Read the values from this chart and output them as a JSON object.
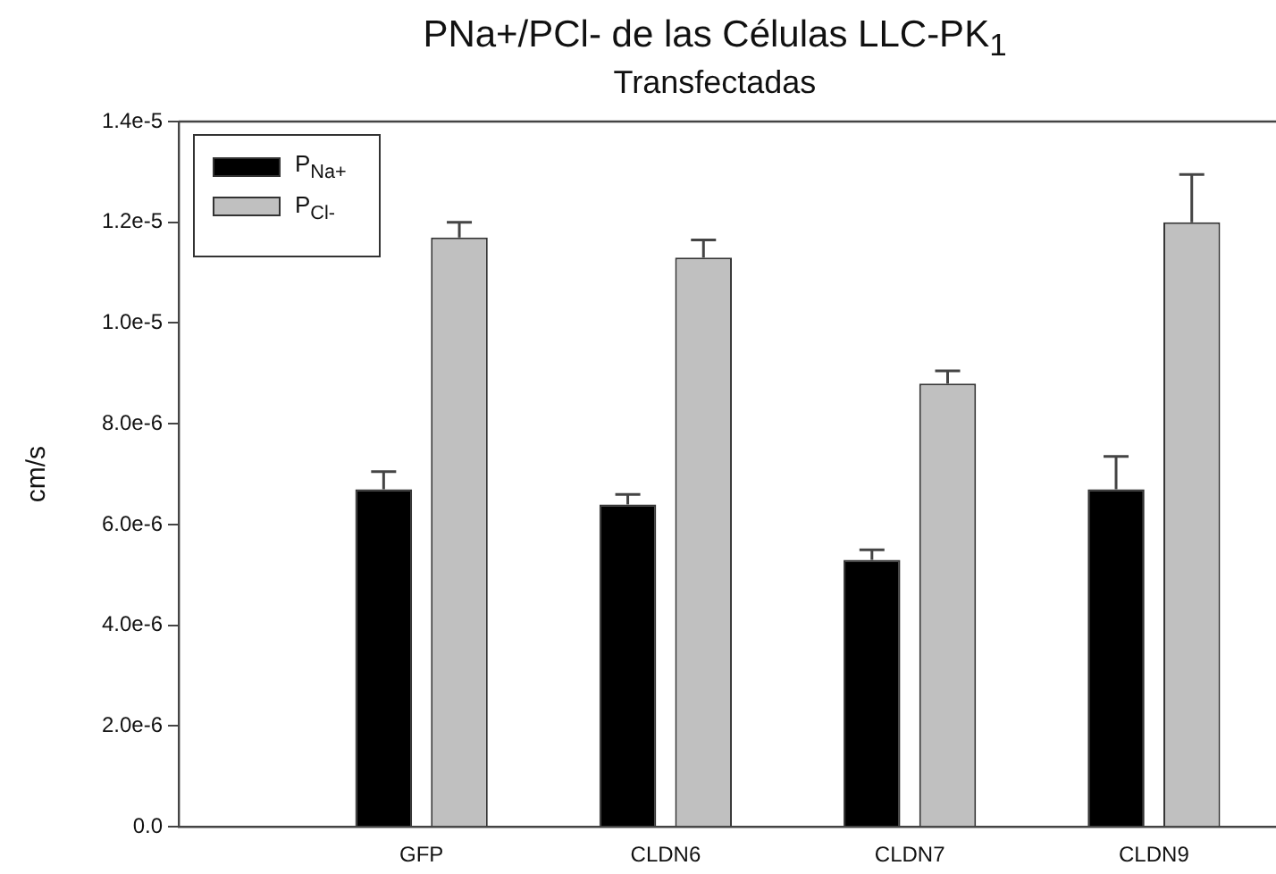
{
  "chart_data": {
    "type": "bar",
    "title": "PNa+/PCl- de las Células LLC-PK$_{1}$",
    "subtitle": "Transfectadas",
    "ylabel": "cm/s",
    "categories": [
      "GFP",
      "CLDN6",
      "CLDN7",
      "CLDN9"
    ],
    "series": [
      {
        "name": "P$_{Na+}$",
        "color": "#000000",
        "values": [
          6.7e-06,
          6.4e-06,
          5.3e-06,
          6.7e-06
        ],
        "errors": [
          3.5e-07,
          2e-07,
          2e-07,
          6.5e-07
        ]
      },
      {
        "name": "P$_{Cl-}$",
        "color": "#c0c0c0",
        "values": [
          1.17e-05,
          1.13e-05,
          8.8e-06,
          1.2e-05
        ],
        "errors": [
          3e-07,
          3.5e-07,
          2.5e-07,
          9.5e-07
        ]
      }
    ],
    "ylim": [
      0,
      1.4e-05
    ],
    "yticks": [
      {
        "value": 0,
        "label": "0.0"
      },
      {
        "value": 2e-06,
        "label": "2.0e-6"
      },
      {
        "value": 4e-06,
        "label": "4.0e-6"
      },
      {
        "value": 6e-06,
        "label": "6.0e-6"
      },
      {
        "value": 8e-06,
        "label": "8.0e-6"
      },
      {
        "value": 1e-05,
        "label": "1.0e-5"
      },
      {
        "value": 1.2e-05,
        "label": "1.2e-5"
      },
      {
        "value": 1.4e-05,
        "label": "1.4e-5"
      }
    ],
    "grid": false,
    "legend": "top left"
  }
}
